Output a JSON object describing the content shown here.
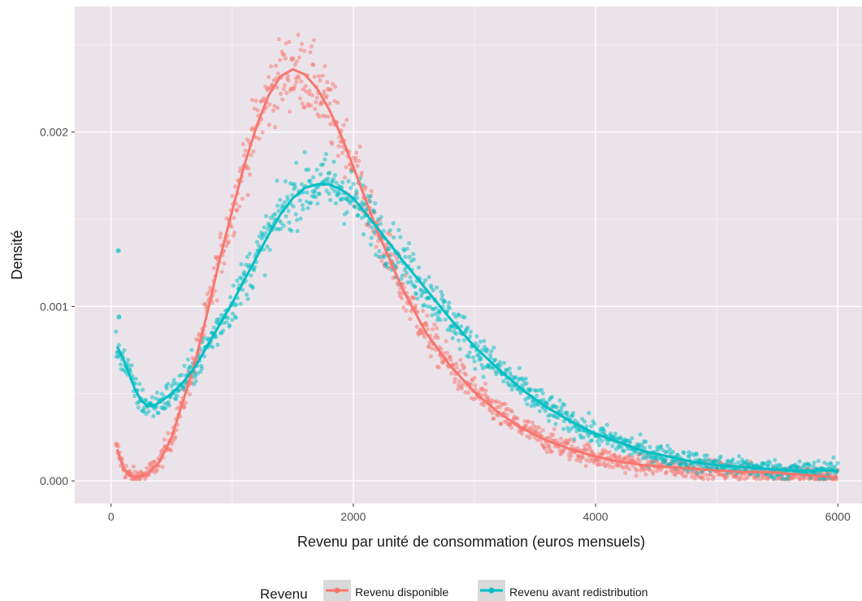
{
  "chart_data": {
    "type": "scatter",
    "xlabel": "Revenu par unité de consommation (euros mensuels)",
    "ylabel": "Densité",
    "xlim": [
      -300,
      6200
    ],
    "ylim": [
      -0.00013,
      0.00272
    ],
    "x_ticks": [
      0,
      2000,
      4000,
      6000
    ],
    "x_tick_labels": [
      "0",
      "2000",
      "4000",
      "6000"
    ],
    "y_ticks": [
      0,
      0.001,
      0.002
    ],
    "y_tick_labels": [
      "0.000",
      "0.001",
      "0.002"
    ],
    "grid": true,
    "panel_background": "#EBE3EA",
    "legend": {
      "title": "Revenu",
      "position": "bottom"
    },
    "series": [
      {
        "name": "Revenu disponible",
        "color": "#F8766D",
        "smooth_curve": [
          [
            50,
            0.00018
          ],
          [
            100,
            8e-05
          ],
          [
            150,
            3e-05
          ],
          [
            200,
            2e-05
          ],
          [
            300,
            4e-05
          ],
          [
            400,
            0.00011
          ],
          [
            500,
            0.00025
          ],
          [
            600,
            0.00047
          ],
          [
            700,
            0.0007
          ],
          [
            800,
            0.00098
          ],
          [
            900,
            0.00128
          ],
          [
            1000,
            0.00155
          ],
          [
            1100,
            0.00181
          ],
          [
            1200,
            0.00203
          ],
          [
            1300,
            0.00221
          ],
          [
            1400,
            0.00232
          ],
          [
            1500,
            0.00236
          ],
          [
            1600,
            0.00233
          ],
          [
            1700,
            0.00225
          ],
          [
            1800,
            0.00213
          ],
          [
            1900,
            0.00198
          ],
          [
            2000,
            0.0018
          ],
          [
            2200,
            0.00143
          ],
          [
            2400,
            0.00111
          ],
          [
            2600,
            0.00085
          ],
          [
            2800,
            0.00066
          ],
          [
            3000,
            0.00051
          ],
          [
            3200,
            0.00039
          ],
          [
            3400,
            0.0003
          ],
          [
            3600,
            0.00023
          ],
          [
            3800,
            0.00018
          ],
          [
            4000,
            0.00014
          ],
          [
            4200,
            0.00011
          ],
          [
            4400,
            9e-05
          ],
          [
            4600,
            8e-05
          ],
          [
            4800,
            7e-05
          ],
          [
            5000,
            6e-05
          ],
          [
            5200,
            5e-05
          ],
          [
            5400,
            5e-05
          ],
          [
            5600,
            4e-05
          ],
          [
            5800,
            3e-05
          ],
          [
            6000,
            2e-05
          ]
        ]
      },
      {
        "name": "Revenu avant redistribution",
        "color": "#00BFC4",
        "smooth_curve": [
          [
            50,
            0.00077
          ],
          [
            100,
            0.0007
          ],
          [
            150,
            0.00061
          ],
          [
            200,
            0.00052
          ],
          [
            250,
            0.00046
          ],
          [
            300,
            0.00043
          ],
          [
            350,
            0.00043
          ],
          [
            400,
            0.00045
          ],
          [
            500,
            0.0005
          ],
          [
            600,
            0.00057
          ],
          [
            700,
            0.00066
          ],
          [
            800,
            0.00078
          ],
          [
            900,
            0.0009
          ],
          [
            1000,
            0.00102
          ],
          [
            1100,
            0.00115
          ],
          [
            1200,
            0.00128
          ],
          [
            1300,
            0.00141
          ],
          [
            1400,
            0.00153
          ],
          [
            1500,
            0.00162
          ],
          [
            1600,
            0.00168
          ],
          [
            1700,
            0.0017
          ],
          [
            1800,
            0.0017
          ],
          [
            1900,
            0.00167
          ],
          [
            2000,
            0.00162
          ],
          [
            2200,
            0.00145
          ],
          [
            2400,
            0.00127
          ],
          [
            2600,
            0.0011
          ],
          [
            2800,
            0.00093
          ],
          [
            3000,
            0.00077
          ],
          [
            3200,
            0.00064
          ],
          [
            3400,
            0.00052
          ],
          [
            3600,
            0.00042
          ],
          [
            3800,
            0.00034
          ],
          [
            4000,
            0.00027
          ],
          [
            4200,
            0.00022
          ],
          [
            4400,
            0.00017
          ],
          [
            4600,
            0.00014
          ],
          [
            4800,
            0.00011
          ],
          [
            5000,
            9e-05
          ],
          [
            5200,
            8e-05
          ],
          [
            5400,
            7e-05
          ],
          [
            5600,
            6e-05
          ],
          [
            5800,
            6e-05
          ],
          [
            6000,
            6e-05
          ]
        ]
      }
    ],
    "outlier_points": [
      {
        "series": 1,
        "x": 60,
        "y": 0.00132
      },
      {
        "series": 1,
        "x": 65,
        "y": 0.00094
      }
    ]
  }
}
